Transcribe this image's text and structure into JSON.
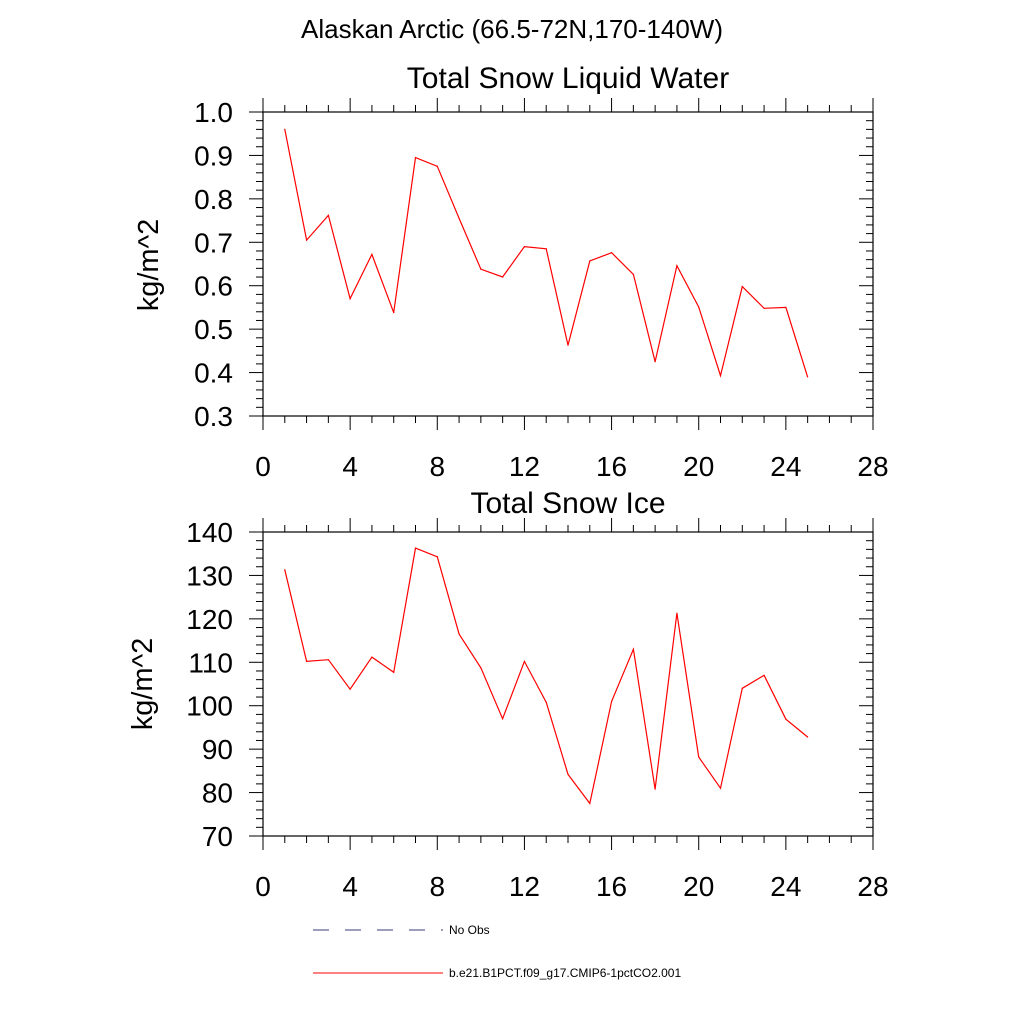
{
  "suptitle": "Alaskan Arctic (66.5-72N,170-140W)",
  "chart_data": [
    {
      "type": "line",
      "title": "Total Snow Liquid Water",
      "xlabel": "",
      "ylabel": "kg/m^2",
      "xlim": [
        0,
        28
      ],
      "ylim": [
        0.3,
        1.0
      ],
      "xticks": [
        "0",
        "4",
        "8",
        "12",
        "16",
        "20",
        "24",
        "28"
      ],
      "yticks": [
        "0.3",
        "0.4",
        "0.5",
        "0.6",
        "0.7",
        "0.8",
        "0.9",
        "1.0"
      ],
      "x": [
        1,
        2,
        3,
        4,
        5,
        6,
        7,
        8,
        9,
        10,
        11,
        12,
        13,
        14,
        15,
        16,
        17,
        18,
        19,
        20,
        21,
        22,
        23,
        24,
        25
      ],
      "series": [
        {
          "name": "b.e21.B1PCT.f09_g17.CMIP6-1pctCO2.001",
          "color": "#ff0000",
          "values": [
            0.96,
            0.705,
            0.762,
            0.57,
            0.672,
            0.538,
            0.895,
            0.875,
            0.755,
            0.638,
            0.62,
            0.69,
            0.685,
            0.463,
            0.657,
            0.676,
            0.626,
            0.425,
            0.646,
            0.551,
            0.393,
            0.598,
            0.548,
            0.55,
            0.39
          ]
        }
      ]
    },
    {
      "type": "line",
      "title": "Total Snow Ice",
      "xlabel": "",
      "ylabel": "kg/m^2",
      "xlim": [
        0,
        28
      ],
      "ylim": [
        70,
        140
      ],
      "xticks": [
        "0",
        "4",
        "8",
        "12",
        "16",
        "20",
        "24",
        "28"
      ],
      "yticks": [
        "70",
        "80",
        "90",
        "100",
        "110",
        "120",
        "130",
        "140"
      ],
      "x": [
        1,
        2,
        3,
        4,
        5,
        6,
        7,
        8,
        9,
        10,
        11,
        12,
        13,
        14,
        15,
        16,
        17,
        18,
        19,
        20,
        21,
        22,
        23,
        24,
        25
      ],
      "series": [
        {
          "name": "b.e21.B1PCT.f09_g17.CMIP6-1pctCO2.001",
          "color": "#ff0000",
          "values": [
            131.3,
            110.2,
            110.6,
            103.8,
            111.2,
            107.7,
            136.3,
            134.3,
            116.5,
            108.7,
            97,
            110.2,
            100.8,
            84.2,
            77.5,
            101,
            113,
            80.8,
            121.3,
            88.2,
            81,
            104,
            107,
            96.9,
            92.8
          ]
        }
      ]
    }
  ],
  "legend": [
    {
      "label": "No Obs",
      "style": "dashed",
      "color": "#3a3a7a"
    },
    {
      "label": "b.e21.B1PCT.f09_g17.CMIP6-1pctCO2.001",
      "style": "solid",
      "color": "#ff0000"
    }
  ]
}
